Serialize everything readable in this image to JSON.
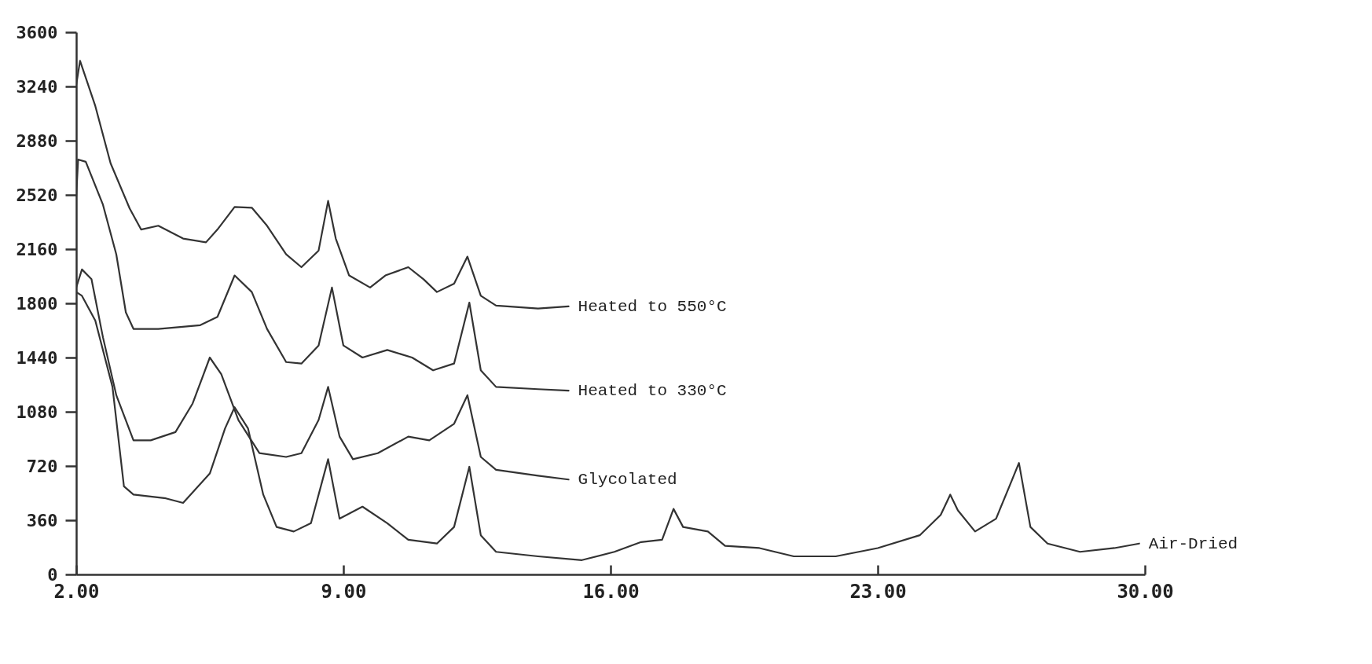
{
  "chart_data": {
    "type": "line",
    "xlim": [
      2,
      30
    ],
    "ylim": [
      0,
      3600
    ],
    "xticks": [
      {
        "value": 2,
        "label": "2.00"
      },
      {
        "value": 9,
        "label": "9.00"
      },
      {
        "value": 16,
        "label": "16.00"
      },
      {
        "value": 23,
        "label": "23.00"
      },
      {
        "value": 30,
        "label": "30.00"
      }
    ],
    "yticks": [
      0,
      360,
      720,
      1080,
      1440,
      1800,
      2160,
      2520,
      2880,
      3240,
      3600
    ],
    "grid": false,
    "legend": false,
    "series": [
      {
        "name": "Heated to 550°C",
        "color": "#333333",
        "x": [
          2.0,
          2.1,
          2.5,
          2.9,
          3.4,
          3.7,
          4.15,
          4.8,
          5.4,
          5.7,
          6.15,
          6.6,
          7.0,
          7.5,
          7.9,
          8.35,
          8.6,
          8.8,
          9.15,
          9.7,
          10.1,
          10.7,
          11.1,
          11.45,
          11.9,
          12.25,
          12.6,
          13.0,
          14.1,
          14.9
        ],
        "values": [
          3250,
          3410,
          3110,
          2730,
          2430,
          2290,
          2315,
          2230,
          2205,
          2290,
          2440,
          2435,
          2315,
          2125,
          2040,
          2150,
          2480,
          2230,
          1985,
          1905,
          1985,
          2040,
          1960,
          1875,
          1930,
          2110,
          1850,
          1785,
          1765,
          1780
        ]
      },
      {
        "name": "Heated to 330°C",
        "color": "#333333",
        "x": [
          2.0,
          2.05,
          2.25,
          2.7,
          3.05,
          3.3,
          3.5,
          4.15,
          5.25,
          5.7,
          6.15,
          6.6,
          7.0,
          7.5,
          7.9,
          8.35,
          8.7,
          9.0,
          9.5,
          10.15,
          10.8,
          11.35,
          11.9,
          12.3,
          12.6,
          13.0,
          14.1,
          14.9
        ],
        "values": [
          2510,
          2755,
          2740,
          2455,
          2125,
          1740,
          1630,
          1630,
          1655,
          1710,
          1985,
          1875,
          1630,
          1410,
          1400,
          1520,
          1905,
          1520,
          1440,
          1490,
          1440,
          1355,
          1400,
          1805,
          1355,
          1245,
          1230,
          1220
        ]
      },
      {
        "name": "Glycolated",
        "color": "#333333",
        "x": [
          2.0,
          2.15,
          2.4,
          2.7,
          3.05,
          3.5,
          3.95,
          4.6,
          5.05,
          5.5,
          5.8,
          6.25,
          6.8,
          7.5,
          7.9,
          8.35,
          8.6,
          8.9,
          9.25,
          9.9,
          10.7,
          11.25,
          11.9,
          12.25,
          12.6,
          13.0,
          14.1,
          14.9
        ],
        "values": [
          1905,
          2025,
          1960,
          1575,
          1190,
          890,
          890,
          945,
          1135,
          1440,
          1330,
          1025,
          805,
          780,
          805,
          1025,
          1245,
          915,
          765,
          805,
          915,
          890,
          1000,
          1190,
          780,
          695,
          655,
          630
        ]
      },
      {
        "name": "Air-Dried",
        "color": "#333333",
        "x": [
          2.0,
          2.15,
          2.5,
          2.95,
          3.25,
          3.5,
          4.35,
          4.8,
          5.5,
          5.9,
          6.15,
          6.5,
          6.9,
          7.25,
          7.7,
          8.15,
          8.6,
          8.9,
          9.5,
          10.15,
          10.7,
          11.45,
          11.9,
          12.3,
          12.6,
          13.0,
          14.1,
          15.25,
          16.1,
          16.8,
          17.35,
          17.65,
          17.9,
          18.55,
          19.0,
          19.9,
          20.8,
          21.9,
          23.0,
          24.1,
          24.65,
          24.9,
          25.1,
          25.55,
          26.1,
          26.45,
          26.7,
          27.0,
          27.45,
          28.3,
          29.2,
          29.85
        ],
        "values": [
          1875,
          1850,
          1685,
          1245,
          585,
          530,
          505,
          475,
          670,
          970,
          1110,
          970,
          530,
          315,
          285,
          340,
          765,
          370,
          450,
          340,
          230,
          205,
          315,
          715,
          260,
          150,
          120,
          95,
          150,
          215,
          230,
          435,
          315,
          285,
          190,
          175,
          120,
          120,
          175,
          260,
          395,
          530,
          425,
          285,
          370,
          585,
          740,
          315,
          205,
          150,
          175,
          205
        ]
      }
    ]
  }
}
